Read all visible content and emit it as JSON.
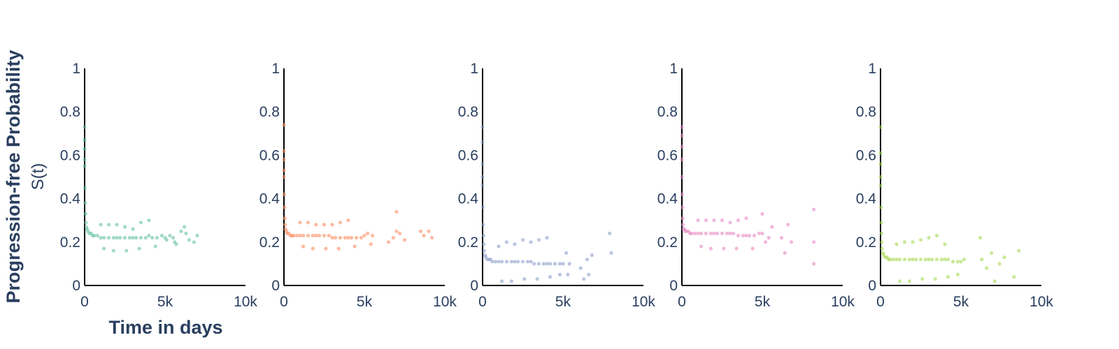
{
  "axis_titles": {
    "y_line1": "Progression-free Probability",
    "y_line2": "S(t)",
    "x": "Time in days"
  },
  "chart_data": [
    {
      "type": "scatter",
      "xlim": [
        0,
        10000
      ],
      "ylim": [
        0,
        1
      ],
      "xticks": [
        {
          "value": 0,
          "label": "0"
        },
        {
          "value": 5000,
          "label": "5k"
        },
        {
          "value": 10000,
          "label": "10k"
        }
      ],
      "yticks": [
        {
          "value": 0,
          "label": "0"
        },
        {
          "value": 0.2,
          "label": "0.2"
        },
        {
          "value": 0.4,
          "label": "0.4"
        },
        {
          "value": 0.6,
          "label": "0.6"
        },
        {
          "value": 0.8,
          "label": "0.8"
        },
        {
          "value": 1,
          "label": "1"
        }
      ],
      "grid": false,
      "color": "#66c2a5",
      "series": [
        {
          "x": [
            0,
            0,
            0,
            0,
            0,
            20,
            40,
            60,
            80,
            100,
            150,
            200,
            300,
            400,
            500,
            600,
            800,
            1000,
            1200,
            1500,
            1800,
            2000,
            2200,
            2500,
            2800,
            3000,
            3200,
            3500,
            3800,
            4000,
            4200,
            4500,
            4800,
            5000,
            5100,
            5300,
            5500,
            5700,
            6000,
            6300,
            6500,
            6800,
            7000,
            1000,
            1500,
            2000,
            2500,
            3000,
            3500,
            4000,
            1200,
            1800,
            2600,
            3400,
            4400,
            5600,
            6200
          ],
          "y": [
            0.73,
            0.67,
            0.63,
            0.58,
            0.55,
            0.45,
            0.38,
            0.33,
            0.29,
            0.27,
            0.26,
            0.25,
            0.24,
            0.24,
            0.23,
            0.23,
            0.23,
            0.22,
            0.22,
            0.22,
            0.22,
            0.22,
            0.22,
            0.22,
            0.22,
            0.22,
            0.22,
            0.22,
            0.22,
            0.23,
            0.22,
            0.22,
            0.23,
            0.22,
            0.21,
            0.23,
            0.22,
            0.19,
            0.25,
            0.24,
            0.21,
            0.2,
            0.23,
            0.28,
            0.28,
            0.28,
            0.27,
            0.26,
            0.29,
            0.3,
            0.17,
            0.16,
            0.16,
            0.17,
            0.18,
            0.2,
            0.27
          ]
        }
      ]
    },
    {
      "type": "scatter",
      "xlim": [
        0,
        10000
      ],
      "ylim": [
        0,
        1
      ],
      "xticks": [
        {
          "value": 0,
          "label": "0"
        },
        {
          "value": 5000,
          "label": "5k"
        },
        {
          "value": 10000,
          "label": "10k"
        }
      ],
      "yticks": [
        {
          "value": 0,
          "label": "0"
        },
        {
          "value": 0.2,
          "label": "0.2"
        },
        {
          "value": 0.4,
          "label": "0.4"
        },
        {
          "value": 0.6,
          "label": "0.6"
        },
        {
          "value": 0.8,
          "label": "0.8"
        },
        {
          "value": 1,
          "label": "1"
        }
      ],
      "grid": false,
      "color": "#fc8d62",
      "series": [
        {
          "x": [
            0,
            0,
            0,
            0,
            0,
            20,
            40,
            60,
            80,
            100,
            150,
            200,
            300,
            400,
            500,
            600,
            800,
            1000,
            1200,
            1500,
            1800,
            2000,
            2200,
            2500,
            2800,
            3000,
            3200,
            3500,
            3800,
            4000,
            4200,
            4500,
            4800,
            5000,
            5200,
            5500,
            6500,
            6800,
            7000,
            7200,
            7500,
            8500,
            8700,
            9000,
            9200,
            1000,
            1500,
            2000,
            2500,
            3000,
            3500,
            4000,
            1200,
            1800,
            2600,
            3400,
            4400,
            5400,
            7000
          ],
          "y": [
            0.74,
            0.62,
            0.58,
            0.53,
            0.5,
            0.42,
            0.36,
            0.31,
            0.28,
            0.26,
            0.25,
            0.24,
            0.24,
            0.23,
            0.23,
            0.23,
            0.23,
            0.23,
            0.23,
            0.23,
            0.23,
            0.23,
            0.23,
            0.23,
            0.23,
            0.22,
            0.22,
            0.22,
            0.22,
            0.22,
            0.22,
            0.22,
            0.22,
            0.23,
            0.24,
            0.23,
            0.2,
            0.22,
            0.25,
            0.24,
            0.21,
            0.25,
            0.23,
            0.25,
            0.22,
            0.29,
            0.29,
            0.28,
            0.28,
            0.28,
            0.29,
            0.3,
            0.18,
            0.17,
            0.17,
            0.17,
            0.18,
            0.19,
            0.34
          ]
        }
      ]
    },
    {
      "type": "scatter",
      "xlim": [
        0,
        10000
      ],
      "ylim": [
        0,
        1
      ],
      "xticks": [
        {
          "value": 0,
          "label": "0"
        },
        {
          "value": 5000,
          "label": "5k"
        },
        {
          "value": 10000,
          "label": "10k"
        }
      ],
      "yticks": [
        {
          "value": 0,
          "label": "0"
        },
        {
          "value": 0.2,
          "label": "0.2"
        },
        {
          "value": 0.4,
          "label": "0.4"
        },
        {
          "value": 0.6,
          "label": "0.6"
        },
        {
          "value": 0.8,
          "label": "0.8"
        },
        {
          "value": 1,
          "label": "1"
        }
      ],
      "grid": false,
      "color": "#8da0cb",
      "series": [
        {
          "x": [
            0,
            0,
            0,
            0,
            0,
            20,
            40,
            60,
            80,
            100,
            150,
            200,
            300,
            400,
            500,
            600,
            800,
            1000,
            1200,
            1500,
            1800,
            2000,
            2200,
            2500,
            2800,
            3000,
            3200,
            3500,
            3800,
            4000,
            4200,
            4500,
            4800,
            5000,
            5200,
            5400,
            6100,
            6300,
            6500,
            6600,
            6800,
            7900,
            8000,
            1000,
            1500,
            2000,
            2500,
            3000,
            3500,
            4000,
            1200,
            1800,
            2600,
            3400,
            4200,
            4800,
            5300
          ],
          "y": [
            0.73,
            0.66,
            0.56,
            0.5,
            0.46,
            0.36,
            0.28,
            0.23,
            0.19,
            0.16,
            0.14,
            0.13,
            0.12,
            0.12,
            0.12,
            0.11,
            0.11,
            0.11,
            0.11,
            0.11,
            0.11,
            0.11,
            0.11,
            0.11,
            0.11,
            0.11,
            0.1,
            0.1,
            0.1,
            0.1,
            0.1,
            0.1,
            0.1,
            0.1,
            0.15,
            0.1,
            0.08,
            0.03,
            0.12,
            0.05,
            0.14,
            0.24,
            0.15,
            0.18,
            0.2,
            0.19,
            0.21,
            0.2,
            0.21,
            0.22,
            0.02,
            0.02,
            0.03,
            0.03,
            0.04,
            0.05,
            0.05
          ]
        }
      ]
    },
    {
      "type": "scatter",
      "xlim": [
        0,
        10000
      ],
      "ylim": [
        0,
        1
      ],
      "xticks": [
        {
          "value": 0,
          "label": "0"
        },
        {
          "value": 5000,
          "label": "5k"
        },
        {
          "value": 10000,
          "label": "10k"
        }
      ],
      "yticks": [
        {
          "value": 0,
          "label": "0"
        },
        {
          "value": 0.2,
          "label": "0.2"
        },
        {
          "value": 0.4,
          "label": "0.4"
        },
        {
          "value": 0.6,
          "label": "0.6"
        },
        {
          "value": 0.8,
          "label": "0.8"
        },
        {
          "value": 1,
          "label": "1"
        }
      ],
      "grid": false,
      "color": "#e78ac3",
      "series": [
        {
          "x": [
            0,
            0,
            0,
            0,
            0,
            20,
            40,
            60,
            80,
            100,
            150,
            200,
            300,
            400,
            500,
            600,
            800,
            1000,
            1200,
            1500,
            1800,
            2000,
            2200,
            2500,
            2800,
            3000,
            3200,
            3500,
            3800,
            4000,
            4200,
            4500,
            4800,
            5000,
            5200,
            5400,
            6200,
            6400,
            6600,
            6800,
            8200,
            8200,
            8200,
            1000,
            1500,
            2000,
            2500,
            3000,
            3500,
            4000,
            1200,
            1800,
            2600,
            3400,
            4400,
            5000,
            5600
          ],
          "y": [
            0.73,
            0.69,
            0.64,
            0.58,
            0.5,
            0.42,
            0.36,
            0.31,
            0.28,
            0.26,
            0.26,
            0.25,
            0.25,
            0.25,
            0.24,
            0.24,
            0.24,
            0.24,
            0.24,
            0.24,
            0.24,
            0.24,
            0.24,
            0.24,
            0.24,
            0.24,
            0.24,
            0.23,
            0.23,
            0.23,
            0.23,
            0.23,
            0.24,
            0.24,
            0.2,
            0.22,
            0.22,
            0.15,
            0.28,
            0.2,
            0.35,
            0.2,
            0.1,
            0.3,
            0.3,
            0.3,
            0.3,
            0.29,
            0.3,
            0.31,
            0.18,
            0.17,
            0.17,
            0.17,
            0.17,
            0.33,
            0.27
          ]
        }
      ]
    },
    {
      "type": "scatter",
      "xlim": [
        0,
        10000
      ],
      "ylim": [
        0,
        1
      ],
      "xticks": [
        {
          "value": 0,
          "label": "0"
        },
        {
          "value": 5000,
          "label": "5k"
        },
        {
          "value": 10000,
          "label": "10k"
        }
      ],
      "yticks": [
        {
          "value": 0,
          "label": "0"
        },
        {
          "value": 0.2,
          "label": "0.2"
        },
        {
          "value": 0.4,
          "label": "0.4"
        },
        {
          "value": 0.6,
          "label": "0.6"
        },
        {
          "value": 0.8,
          "label": "0.8"
        },
        {
          "value": 1,
          "label": "1"
        }
      ],
      "grid": false,
      "color": "#a6d854",
      "series": [
        {
          "x": [
            0,
            0,
            0,
            0,
            0,
            20,
            40,
            60,
            80,
            100,
            150,
            200,
            300,
            400,
            500,
            600,
            800,
            1000,
            1200,
            1500,
            1800,
            2000,
            2200,
            2500,
            2800,
            3000,
            3200,
            3500,
            3800,
            4000,
            4200,
            4500,
            4800,
            5000,
            5200,
            6300,
            6600,
            6900,
            7100,
            7400,
            7700,
            8300,
            8600,
            1000,
            1500,
            2000,
            2500,
            3000,
            3500,
            4000,
            1200,
            1800,
            2600,
            3400,
            4200,
            4800,
            6200
          ],
          "y": [
            0.73,
            0.61,
            0.56,
            0.5,
            0.46,
            0.36,
            0.29,
            0.24,
            0.2,
            0.17,
            0.15,
            0.14,
            0.13,
            0.13,
            0.12,
            0.12,
            0.12,
            0.12,
            0.12,
            0.12,
            0.12,
            0.12,
            0.12,
            0.12,
            0.12,
            0.12,
            0.12,
            0.12,
            0.12,
            0.12,
            0.12,
            0.11,
            0.11,
            0.11,
            0.12,
            0.12,
            0.08,
            0.15,
            0.02,
            0.1,
            0.13,
            0.04,
            0.16,
            0.19,
            0.2,
            0.2,
            0.21,
            0.22,
            0.23,
            0.19,
            0.02,
            0.02,
            0.03,
            0.03,
            0.04,
            0.05,
            0.22
          ]
        }
      ]
    }
  ]
}
